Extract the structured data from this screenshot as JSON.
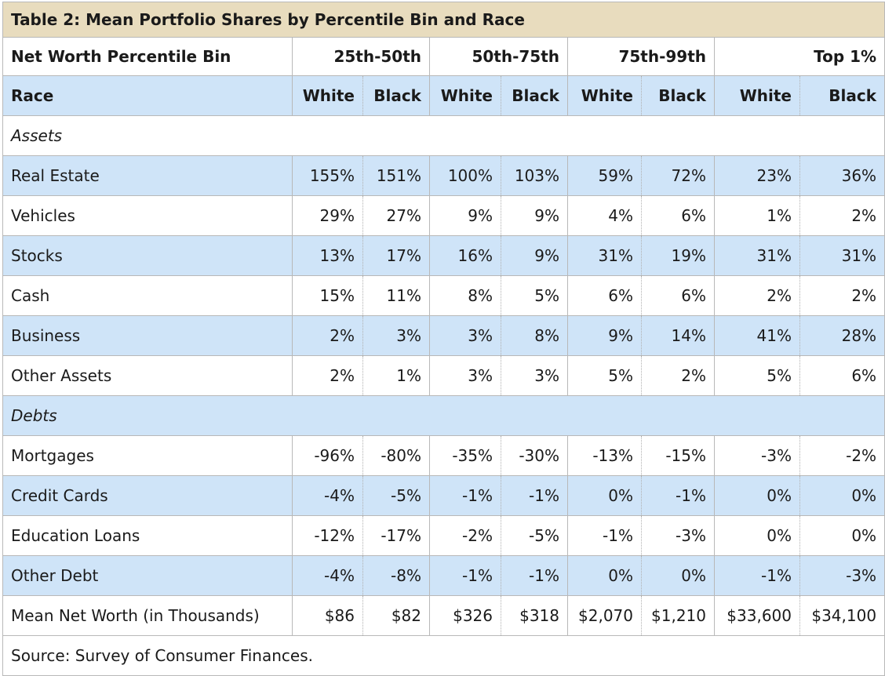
{
  "title": "Table 2: Mean Portfolio Shares by Percentile Bin and Race",
  "bin_header": {
    "label": "Net Worth Percentile Bin",
    "bins": [
      "25th-50th",
      "50th-75th",
      "75th-99th",
      "Top 1%"
    ]
  },
  "race_header": {
    "label": "Race",
    "races": [
      "White",
      "Black",
      "White",
      "Black",
      "White",
      "Black",
      "White",
      "Black"
    ]
  },
  "sections": {
    "assets": "Assets",
    "debts": "Debts"
  },
  "rows": [
    {
      "label": "Real Estate",
      "values": [
        "155%",
        "151%",
        "100%",
        "103%",
        "59%",
        "72%",
        "23%",
        "36%"
      ]
    },
    {
      "label": "Vehicles",
      "values": [
        "29%",
        "27%",
        "9%",
        "9%",
        "4%",
        "6%",
        "1%",
        "2%"
      ]
    },
    {
      "label": "Stocks",
      "values": [
        "13%",
        "17%",
        "16%",
        "9%",
        "31%",
        "19%",
        "31%",
        "31%"
      ]
    },
    {
      "label": "Cash",
      "values": [
        "15%",
        "11%",
        "8%",
        "5%",
        "6%",
        "6%",
        "2%",
        "2%"
      ]
    },
    {
      "label": "Business",
      "values": [
        "2%",
        "3%",
        "3%",
        "8%",
        "9%",
        "14%",
        "41%",
        "28%"
      ]
    },
    {
      "label": "Other Assets",
      "values": [
        "2%",
        "1%",
        "3%",
        "3%",
        "5%",
        "2%",
        "5%",
        "6%"
      ]
    },
    {
      "label": "Mortgages",
      "values": [
        "-96%",
        "-80%",
        "-35%",
        "-30%",
        "-13%",
        "-15%",
        "-3%",
        "-2%"
      ]
    },
    {
      "label": "Credit Cards",
      "values": [
        "-4%",
        "-5%",
        "-1%",
        "-1%",
        "0%",
        "-1%",
        "0%",
        "0%"
      ]
    },
    {
      "label": "Education Loans",
      "values": [
        "-12%",
        "-17%",
        "-2%",
        "-5%",
        "-1%",
        "-3%",
        "0%",
        "0%"
      ]
    },
    {
      "label": "Other Debt",
      "values": [
        "-4%",
        "-8%",
        "-1%",
        "-1%",
        "0%",
        "0%",
        "-1%",
        "-3%"
      ]
    },
    {
      "label": "Mean Net Worth (in Thousands)",
      "values": [
        "$86",
        "$82",
        "$326",
        "$318",
        "$2,070",
        "$1,210",
        "$33,600",
        "$34,100"
      ]
    }
  ],
  "source": "Source: Survey of Consumer Finances."
}
